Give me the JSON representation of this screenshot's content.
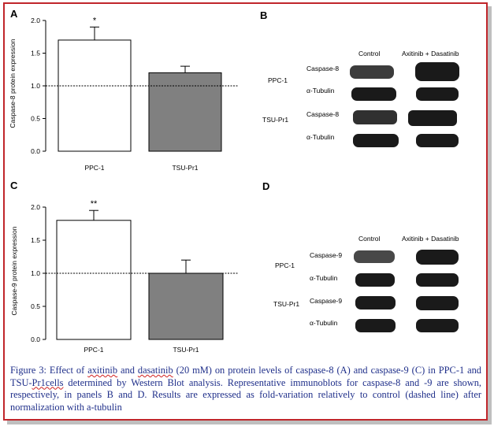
{
  "panels": {
    "A": {
      "label": "A",
      "chart_data": {
        "type": "bar",
        "categories": [
          "PPC-1",
          "TSU-Pr1"
        ],
        "values": [
          1.7,
          1.2
        ],
        "errors": [
          0.2,
          0.1
        ],
        "significance": [
          "*",
          ""
        ],
        "bar_colors": [
          "#ffffff",
          "#808080"
        ],
        "ylabel": "Caspase-8 protein expression",
        "yticks": [
          "0.0",
          "0.5",
          "1.0",
          "1.5",
          "2.0"
        ],
        "ylim": [
          0,
          2.0
        ],
        "reference_line": 1.0
      }
    },
    "B": {
      "label": "B",
      "col_headers": [
        "Control",
        "Axitinib + Dasatinib"
      ],
      "row_groups": [
        "PPC-1",
        "TSU-Pr1"
      ],
      "row_labels": [
        "Caspase-8",
        "α-Tubulin",
        "Caspase-8",
        "α-Tubulin"
      ]
    },
    "C": {
      "label": "C",
      "chart_data": {
        "type": "bar",
        "categories": [
          "PPC-1",
          "TSU-Pr1"
        ],
        "values": [
          1.8,
          1.0
        ],
        "errors": [
          0.15,
          0.2
        ],
        "significance": [
          "**",
          ""
        ],
        "bar_colors": [
          "#ffffff",
          "#808080"
        ],
        "ylabel": "Caspase-9 protein expression",
        "yticks": [
          "0.0",
          "0.5",
          "1.0",
          "1.5",
          "2.0"
        ],
        "ylim": [
          0,
          2.0
        ],
        "reference_line": 1.0
      }
    },
    "D": {
      "label": "D",
      "col_headers": [
        "Control",
        "Axitinib + Dasatinib"
      ],
      "row_groups": [
        "PPC-1",
        "TSU-Pr1"
      ],
      "row_labels": [
        "Caspase-9",
        "α-Tubulin",
        "Caspase-9",
        "α-Tubulin"
      ]
    }
  },
  "caption": {
    "p1": "Figure 3: Effect of ",
    "w1": "axitinib",
    "p2": " and ",
    "w2": "dasatinib",
    "p3": " (20 mM) on protein levels of caspase-8 (A) and caspase-9 (C) in PPC-1 and TSU-",
    "w3": "Pr1cells",
    "p4": " determined by Western Blot analysis. Representative immunoblots for caspase-8 and -9 are shown, respectively, in panels B and D. Results are expressed as fold-variation relatively to control (dashed line) after normalization with a-tubulin"
  },
  "colors": {
    "frame": "#c0262b",
    "caption": "#1f2f8a",
    "bar_dark": "#808080"
  }
}
